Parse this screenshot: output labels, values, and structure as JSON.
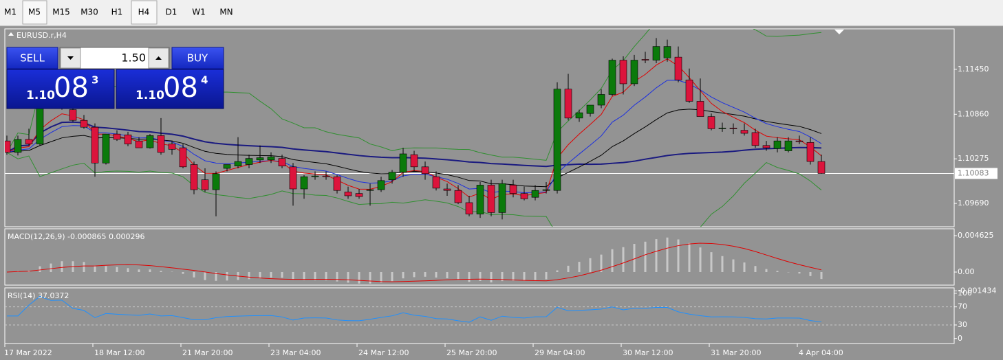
{
  "toolbar": {
    "timeframes": [
      "M1",
      "M5",
      "M15",
      "M30",
      "H1",
      "H4",
      "D1",
      "W1",
      "MN"
    ],
    "selected": [
      "M5",
      "H4"
    ]
  },
  "trade_panel": {
    "sell": "SELL",
    "buy": "BUY",
    "volume": "1.50",
    "bid": {
      "big": "1.10",
      "pips": "08",
      "point": "3"
    },
    "ask": {
      "big": "1.10",
      "pips": "08",
      "point": "4"
    }
  },
  "chart_data": {
    "type": "candlestick",
    "title": "EURUSD.r,H4",
    "up_color": "#0b7a0b",
    "down_color": "#dc143c",
    "candles": {
      "open": [
        1.1051,
        1.1036,
        1.1053,
        1.1047,
        1.111,
        1.1101,
        1.1092,
        1.1078,
        1.1069,
        1.1022,
        1.106,
        1.1059,
        1.1051,
        1.1042,
        1.1058,
        1.1047,
        1.1042,
        1.102,
        1.1,
        1.0987,
        1.1015,
        1.1018,
        1.102,
        1.1026,
        1.1026,
        1.1028,
        1.1017,
        1.0988,
        1.1004,
        1.1005,
        1.1004,
        1.0984,
        1.0982,
        1.0986,
        1.0987,
        1.1,
        1.101,
        1.1033,
        1.1017,
        1.1004,
        1.0988,
        1.0986,
        1.097,
        1.0955,
        1.0993,
        1.0957,
        1.0993,
        1.0982,
        1.0977,
        1.0986,
        1.0986,
        1.1119,
        1.1081,
        1.1087,
        1.1098,
        1.1112,
        1.1157,
        1.1126,
        1.1158,
        1.1157,
        1.116,
        1.1161,
        1.1131,
        1.1103,
        1.1083,
        1.1068,
        1.1068,
        1.1065,
        1.1062,
        1.1045,
        1.1041,
        1.1038,
        1.1051,
        1.1049,
        1.1024
      ],
      "high": [
        1.1058,
        1.1058,
        1.1067,
        1.1119,
        1.1121,
        1.111,
        1.1101,
        1.1085,
        1.1074,
        1.106,
        1.1065,
        1.1063,
        1.1056,
        1.106,
        1.1081,
        1.1051,
        1.1047,
        1.1024,
        1.1015,
        1.1011,
        1.102,
        1.1056,
        1.1033,
        1.1045,
        1.1036,
        1.1033,
        1.1022,
        1.1006,
        1.1011,
        1.1011,
        1.1006,
        1.0991,
        1.0988,
        1.0995,
        1.1004,
        1.1013,
        1.1042,
        1.1038,
        1.1024,
        1.1011,
        1.0995,
        1.0993,
        1.0979,
        1.0997,
        1.1,
        1.1,
        1.1,
        1.0991,
        1.0993,
        1.0997,
        1.1128,
        1.1139,
        1.1092,
        1.1098,
        1.1119,
        1.1159,
        1.1162,
        1.1164,
        1.1168,
        1.1186,
        1.1184,
        1.1175,
        1.1146,
        1.1133,
        1.1087,
        1.1075,
        1.1074,
        1.1074,
        1.1067,
        1.1051,
        1.1056,
        1.1056,
        1.1058,
        1.1056,
        1.1033
      ],
      "low": [
        1.1033,
        1.1032,
        1.1045,
        1.1045,
        1.1099,
        1.1092,
        1.1076,
        1.1067,
        1.1004,
        1.102,
        1.1051,
        1.1044,
        1.1042,
        1.1041,
        1.1033,
        1.1033,
        1.1015,
        1.0981,
        1.0984,
        1.0952,
        1.1011,
        1.1015,
        1.1015,
        1.1022,
        1.1022,
        1.1015,
        1.0966,
        1.0975,
        1.1,
        1.1,
        1.0982,
        1.0975,
        1.0975,
        1.0966,
        1.0984,
        1.0995,
        1.1004,
        1.1011,
        1.1,
        1.0986,
        1.0979,
        1.0968,
        1.0952,
        1.095,
        1.0952,
        1.0948,
        1.0977,
        1.0973,
        1.0973,
        1.0982,
        1.0982,
        1.1078,
        1.1076,
        1.1083,
        1.1094,
        1.111,
        1.1112,
        1.1123,
        1.1153,
        1.1153,
        1.1155,
        1.1128,
        1.1101,
        1.1083,
        1.1065,
        1.1063,
        1.106,
        1.1058,
        1.1042,
        1.1038,
        1.1036,
        1.1036,
        1.1047,
        1.102,
        1.1008
      ],
      "close": [
        1.1036,
        1.1053,
        1.1047,
        1.111,
        1.1101,
        1.1105,
        1.1078,
        1.1069,
        1.1022,
        1.106,
        1.1053,
        1.1047,
        1.1042,
        1.1058,
        1.1036,
        1.104,
        1.1017,
        1.0987,
        1.0987,
        1.1008,
        1.102,
        1.1024,
        1.1028,
        1.1029,
        1.103,
        1.1018,
        1.0988,
        1.1004,
        1.1005,
        1.1004,
        1.0986,
        1.0979,
        1.0978,
        1.0987,
        1.0999,
        1.101,
        1.1034,
        1.1017,
        1.1008,
        1.0989,
        1.0986,
        1.097,
        1.0955,
        1.0993,
        1.0957,
        1.0995,
        1.0982,
        1.0975,
        1.0986,
        1.0987,
        1.1119,
        1.1081,
        1.1088,
        1.1098,
        1.1112,
        1.1157,
        1.1126,
        1.1157,
        1.1157,
        1.1175,
        1.1175,
        1.1131,
        1.1103,
        1.1083,
        1.1067,
        1.1068,
        1.1067,
        1.1061,
        1.1045,
        1.1042,
        1.1051,
        1.1051,
        1.105,
        1.1024,
        1.10083
      ]
    },
    "time_axis": [
      "17 Mar 2022",
      "18 Mar 12:00",
      "21 Mar 20:00",
      "23 Mar 04:00",
      "24 Mar 12:00",
      "25 Mar 20:00",
      "29 Mar 04:00",
      "30 Mar 12:00",
      "31 Mar 20:00",
      "4 Apr 04:00"
    ],
    "ylim": [
      1.09384,
      1.11981
    ],
    "yticks": [
      {
        "value": 1.1145,
        "label": "1.11450"
      },
      {
        "value": 1.1086,
        "label": "1.10860"
      },
      1.10275,
      {
        "value": 1.0969,
        "label": "1.09690"
      }
    ],
    "current_price": 1.10083
  },
  "macd": {
    "label": "MACD(12,26,9) -0.000865 0.000296",
    "ylim": [
      -0.00166,
      0.0055
    ],
    "yticks": [
      {
        "value": 0.004625,
        "label": "0.004625"
      },
      {
        "value": 0,
        "label": "0.00"
      },
      {
        "value": -0.001434,
        "label": "-0.001434"
      }
    ],
    "bar_color": "#c8c8c8",
    "signal_color": "#e00000"
  },
  "rsi": {
    "label": "RSI(14) 37.0372",
    "ylim": [
      -11,
      112
    ],
    "yticks": [
      100,
      70,
      30,
      0
    ],
    "levels": [
      70,
      30
    ],
    "color": "#1e90ff"
  }
}
